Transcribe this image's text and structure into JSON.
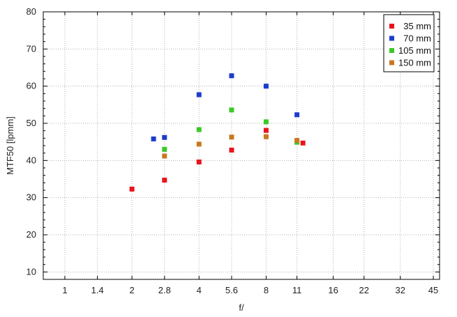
{
  "chart_data": {
    "type": "scatter",
    "title": "",
    "xlabel": "f/",
    "ylabel": "MTF50 [lpmm]",
    "x_scale": "log2",
    "x_ticks": [
      "1",
      "1.4",
      "2",
      "2.8",
      "4",
      "5.6",
      "8",
      "11",
      "16",
      "22",
      "32",
      "45"
    ],
    "xlim": [
      0.8,
      48
    ],
    "ylim": [
      8,
      80
    ],
    "y_ticks": [
      10,
      20,
      30,
      40,
      50,
      60,
      70,
      80
    ],
    "grid": true,
    "legend_position": "top-right",
    "series": [
      {
        "name": "35 mm",
        "color": "#e8141c",
        "points": [
          [
            2,
            32.3
          ],
          [
            2.8,
            34.7
          ],
          [
            4,
            39.6
          ],
          [
            5.6,
            42.8
          ],
          [
            8,
            48.1
          ],
          [
            11.7,
            44.7
          ]
        ]
      },
      {
        "name": "70 mm",
        "color": "#1c3ccc",
        "points": [
          [
            2.5,
            45.8
          ],
          [
            2.8,
            46.2
          ],
          [
            4,
            57.7
          ],
          [
            5.6,
            62.8
          ],
          [
            8,
            60.0
          ],
          [
            11,
            52.3
          ]
        ]
      },
      {
        "name": "105 mm",
        "color": "#3cc828",
        "points": [
          [
            2.8,
            43.0
          ],
          [
            4,
            48.3
          ],
          [
            5.6,
            53.6
          ],
          [
            8,
            50.4
          ],
          [
            11,
            44.9
          ]
        ]
      },
      {
        "name": "150 mm",
        "color": "#c87820",
        "points": [
          [
            2.8,
            41.2
          ],
          [
            4,
            44.4
          ],
          [
            5.6,
            46.3
          ],
          [
            8,
            46.4
          ],
          [
            11,
            45.4
          ]
        ]
      }
    ]
  }
}
